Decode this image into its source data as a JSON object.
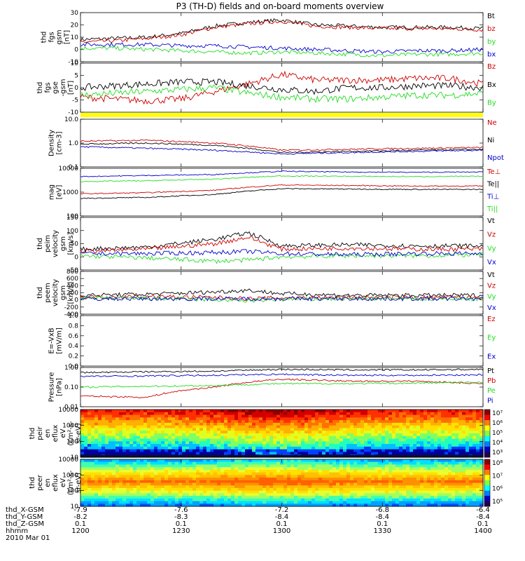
{
  "title": "P3 (TH-D) fields and on-board moments overview",
  "footer": {
    "row_labels": [
      "thd_X-GSM",
      "thd_Y-GSM",
      "thd_Z-GSM",
      "hhmm",
      "2010 Mar 01"
    ],
    "time_ticks": [
      "1200",
      "1230",
      "1300",
      "1330",
      "1400"
    ],
    "x_gsm": [
      "-7.9",
      "-7.6",
      "-7.2",
      "-6.8",
      "-6.4"
    ],
    "y_gsm": [
      "-8.2",
      "-8.3",
      "-8.4",
      "-8.4",
      "-8.4"
    ],
    "z_gsm": [
      "0.1",
      "0.1",
      "0.1",
      "0.1",
      "0.1"
    ]
  },
  "colors": {
    "black": "#000000",
    "red": "#cc0000",
    "green": "#22dd22",
    "blue": "#0000cc",
    "yellow": "#ffff00"
  },
  "chart_data": [
    {
      "type": "line",
      "ylabel_lines": [
        "thd",
        "fgs",
        "gsm",
        "[nT]"
      ],
      "yticks": [
        "30",
        "20",
        "10",
        "0",
        "-10"
      ],
      "ylim": [
        -10,
        30
      ],
      "x_range": [
        "1200",
        "1400"
      ],
      "legend": [
        "Bt",
        "bz",
        "by",
        "bx"
      ],
      "legend_colors": [
        "#000000",
        "#cc0000",
        "#22dd22",
        "#0000cc"
      ],
      "series": [
        {
          "name": "Bt",
          "x": [
            "1200",
            "1210",
            "1220",
            "1230",
            "1240",
            "1250",
            "1300",
            "1310",
            "1320",
            "1330",
            "1340",
            "1350",
            "1400"
          ],
          "values": [
            8,
            9,
            10,
            13,
            19,
            22,
            24,
            20,
            19,
            18,
            18,
            18,
            17
          ]
        },
        {
          "name": "bz",
          "x": [
            "1200",
            "1210",
            "1220",
            "1230",
            "1240",
            "1250",
            "1300",
            "1310",
            "1320",
            "1330",
            "1340",
            "1350",
            "1400"
          ],
          "values": [
            6,
            7,
            9,
            12,
            18,
            21,
            23,
            19,
            18,
            17,
            17,
            17,
            16
          ]
        },
        {
          "name": "by",
          "x": [
            "1200",
            "1210",
            "1220",
            "1230",
            "1240",
            "1250",
            "1300",
            "1310",
            "1320",
            "1330",
            "1340",
            "1350",
            "1400"
          ],
          "values": [
            1,
            1,
            0,
            -1,
            -2,
            -3,
            -2,
            -3,
            -4,
            -5,
            -4,
            -4,
            -3
          ]
        },
        {
          "name": "bx",
          "x": [
            "1200",
            "1210",
            "1220",
            "1230",
            "1240",
            "1250",
            "1300",
            "1310",
            "1320",
            "1330",
            "1340",
            "1350",
            "1400"
          ],
          "values": [
            4,
            4,
            4,
            3,
            3,
            2,
            1,
            0,
            -1,
            -2,
            -1,
            -1,
            0
          ]
        }
      ]
    },
    {
      "type": "line",
      "ylabel_lines": [
        "thd",
        "fgs",
        "gse",
        "-gsm",
        "[nT]"
      ],
      "yticks": [
        "10",
        "5",
        "0",
        "-5",
        "-10"
      ],
      "ylim": [
        -13,
        13
      ],
      "x_range": [
        "1200",
        "1400"
      ],
      "legend": [
        "Bz",
        "Bx",
        "By"
      ],
      "legend_colors": [
        "#cc0000",
        "#000000",
        "#22dd22"
      ],
      "series": [
        {
          "name": "Bz",
          "x": [
            "1200",
            "1210",
            "1220",
            "1230",
            "1240",
            "1250",
            "1300",
            "1310",
            "1320",
            "1330",
            "1340",
            "1350",
            "1400"
          ],
          "values": [
            -5,
            -6,
            -7,
            -6,
            -2,
            2,
            7,
            4,
            4,
            4,
            5,
            5,
            2
          ]
        },
        {
          "name": "Bx",
          "x": [
            "1200",
            "1210",
            "1220",
            "1230",
            "1240",
            "1250",
            "1300",
            "1310",
            "1320",
            "1330",
            "1340",
            "1350",
            "1400"
          ],
          "values": [
            0,
            1,
            2,
            3,
            3,
            1,
            -1,
            -2,
            0,
            0,
            1,
            1,
            0
          ]
        },
        {
          "name": "By",
          "x": [
            "1200",
            "1210",
            "1220",
            "1230",
            "1240",
            "1250",
            "1300",
            "1310",
            "1320",
            "1330",
            "1340",
            "1350",
            "1400"
          ],
          "values": [
            -4,
            -3,
            -2,
            -1,
            0,
            -3,
            -5,
            -6,
            -6,
            -5,
            -4,
            -4,
            -3
          ]
        }
      ]
    },
    {
      "type": "line",
      "log_scale": true,
      "ylabel_lines": [
        "Density",
        "[cm-3]"
      ],
      "yticks": [
        "10.0",
        "1.0",
        "0.1"
      ],
      "ylim": [
        0.1,
        10
      ],
      "x_range": [
        "1200",
        "1400"
      ],
      "legend": [
        "Ne",
        "Ni",
        "Npot"
      ],
      "legend_colors": [
        "#cc0000",
        "#000000",
        "#0000cc"
      ],
      "series": [
        {
          "name": "Ne",
          "x": [
            "1200",
            "1220",
            "1240",
            "1300",
            "1320",
            "1340",
            "1400"
          ],
          "values": [
            1.2,
            1.3,
            1.0,
            0.5,
            0.55,
            0.6,
            0.65
          ]
        },
        {
          "name": "Ni",
          "x": [
            "1200",
            "1220",
            "1240",
            "1300",
            "1320",
            "1340",
            "1400"
          ],
          "values": [
            0.9,
            1.0,
            0.8,
            0.4,
            0.45,
            0.5,
            0.55
          ]
        },
        {
          "name": "Npot",
          "x": [
            "1200",
            "1220",
            "1240",
            "1300",
            "1320",
            "1340",
            "1400"
          ],
          "values": [
            0.7,
            0.6,
            0.5,
            0.35,
            0.4,
            0.45,
            0.5
          ]
        }
      ]
    },
    {
      "type": "line",
      "log_scale": true,
      "ylabel_lines": [
        "mag",
        "[eV]"
      ],
      "yticks": [
        "10000",
        "1000",
        "100"
      ],
      "ylim": [
        100,
        10000
      ],
      "x_range": [
        "1200",
        "1400"
      ],
      "legend": [
        "Te⊥",
        "Te||",
        "Ti⊥",
        "Ti||"
      ],
      "legend_colors": [
        "#cc0000",
        "#000000",
        "#0000cc",
        "#22dd22"
      ],
      "series": [
        {
          "name": "Te⊥",
          "x": [
            "1200",
            "1220",
            "1240",
            "1300",
            "1320",
            "1340",
            "1400"
          ],
          "values": [
            850,
            950,
            1200,
            2000,
            1900,
            1800,
            1800
          ]
        },
        {
          "name": "Te||",
          "x": [
            "1200",
            "1220",
            "1240",
            "1300",
            "1320",
            "1340",
            "1400"
          ],
          "values": [
            550,
            600,
            800,
            1400,
            1350,
            1300,
            1300
          ]
        },
        {
          "name": "Ti⊥",
          "x": [
            "1200",
            "1220",
            "1240",
            "1300",
            "1320",
            "1340",
            "1400"
          ],
          "values": [
            4500,
            5000,
            5500,
            7500,
            7000,
            6800,
            7000
          ]
        },
        {
          "name": "Ti||",
          "x": [
            "1200",
            "1220",
            "1240",
            "1300",
            "1320",
            "1340",
            "1400"
          ],
          "values": [
            2800,
            3000,
            3500,
            4800,
            4600,
            4500,
            4600
          ]
        }
      ]
    },
    {
      "type": "line",
      "ylabel_lines": [
        "thd",
        "peim",
        "velocity",
        "gsm",
        "[km/s]"
      ],
      "yticks": [
        "150",
        "100",
        "50",
        "0",
        "-50"
      ],
      "ylim": [
        -70,
        170
      ],
      "x_range": [
        "1200",
        "1400"
      ],
      "legend": [
        "Vt",
        "Vz",
        "Vy",
        "Vx"
      ],
      "legend_colors": [
        "#000000",
        "#cc0000",
        "#22dd22",
        "#0000cc"
      ],
      "series": [
        {
          "name": "Vt",
          "x": [
            "1200",
            "1220",
            "1240",
            "1250",
            "1300",
            "1320",
            "1340",
            "1400"
          ],
          "values": [
            25,
            35,
            70,
            100,
            40,
            45,
            40,
            40
          ]
        },
        {
          "name": "Vz",
          "x": [
            "1200",
            "1220",
            "1240",
            "1250",
            "1300",
            "1320",
            "1340",
            "1400"
          ],
          "values": [
            15,
            25,
            50,
            80,
            25,
            30,
            25,
            25
          ]
        },
        {
          "name": "Vy",
          "x": [
            "1200",
            "1220",
            "1240",
            "1250",
            "1300",
            "1320",
            "1340",
            "1400"
          ],
          "values": [
            -5,
            -15,
            -30,
            -25,
            -10,
            -5,
            -5,
            0
          ]
        },
        {
          "name": "Vx",
          "x": [
            "1200",
            "1220",
            "1240",
            "1250",
            "1300",
            "1320",
            "1340",
            "1400"
          ],
          "values": [
            5,
            5,
            10,
            15,
            5,
            0,
            5,
            5
          ]
        }
      ]
    },
    {
      "type": "line",
      "ylabel_lines": [
        "thd",
        "peem",
        "velocity",
        "gsm",
        "[km/s]"
      ],
      "yticks": [
        "800",
        "600",
        "400",
        "200",
        "0",
        "-200",
        "-400"
      ],
      "ylim": [
        -450,
        800
      ],
      "x_range": [
        "1200",
        "1400"
      ],
      "legend": [
        "Vt",
        "Vz",
        "Vy",
        "Vx"
      ],
      "legend_colors": [
        "#000000",
        "#cc0000",
        "#22dd22",
        "#0000cc"
      ],
      "series": [
        {
          "name": "Vt",
          "x": [
            "1200",
            "1220",
            "1240",
            "1250",
            "1300",
            "1320",
            "1340",
            "1400"
          ],
          "values": [
            100,
            130,
            200,
            250,
            150,
            100,
            100,
            100
          ]
        },
        {
          "name": "Vz",
          "x": [
            "1200",
            "1220",
            "1240",
            "1250",
            "1300",
            "1320",
            "1340",
            "1400"
          ],
          "values": [
            50,
            60,
            40,
            0,
            30,
            40,
            40,
            40
          ]
        },
        {
          "name": "Vy",
          "x": [
            "1200",
            "1220",
            "1240",
            "1250",
            "1300",
            "1320",
            "1340",
            "1400"
          ],
          "values": [
            20,
            10,
            -30,
            -60,
            -20,
            0,
            0,
            0
          ]
        },
        {
          "name": "Vx",
          "x": [
            "1200",
            "1220",
            "1240",
            "1250",
            "1300",
            "1320",
            "1340",
            "1400"
          ],
          "values": [
            0,
            0,
            0,
            0,
            0,
            0,
            0,
            0
          ]
        }
      ]
    },
    {
      "type": "line",
      "ylabel_lines": [
        "E=-VxB",
        "[mV/m]"
      ],
      "yticks": [
        "1.0",
        "0.8",
        "0.6",
        "0.4",
        "0.2",
        "0.0"
      ],
      "ylim": [
        0,
        1
      ],
      "x_range": [
        "1200",
        "1400"
      ],
      "legend": [
        "Ez",
        "Ey",
        "Ex"
      ],
      "legend_colors": [
        "#cc0000",
        "#22dd22",
        "#0000cc"
      ],
      "series": []
    },
    {
      "type": "line",
      "log_scale": true,
      "ylabel_lines": [
        "Pressure",
        "[nPa]"
      ],
      "yticks": [
        "1.00",
        "0.10",
        "0.01"
      ],
      "ylim": [
        0.01,
        1
      ],
      "x_range": [
        "1200",
        "1400"
      ],
      "legend": [
        "Pt",
        "Pb",
        "Pe",
        "Pi"
      ],
      "legend_colors": [
        "#000000",
        "#cc0000",
        "#22dd22",
        "#0000cc"
      ],
      "series": [
        {
          "name": "Pt",
          "x": [
            "1200",
            "1220",
            "1240",
            "1300",
            "1320",
            "1340",
            "1400"
          ],
          "values": [
            0.55,
            0.6,
            0.65,
            0.8,
            0.75,
            0.75,
            0.8
          ]
        },
        {
          "name": "Pb",
          "x": [
            "1200",
            "1220",
            "1240",
            "1300",
            "1320",
            "1340",
            "1400"
          ],
          "values": [
            0.035,
            0.03,
            0.1,
            0.25,
            0.2,
            0.2,
            0.15
          ]
        },
        {
          "name": "Pe",
          "x": [
            "1200",
            "1220",
            "1240",
            "1300",
            "1320",
            "1340",
            "1400"
          ],
          "values": [
            0.1,
            0.11,
            0.12,
            0.15,
            0.15,
            0.16,
            0.18
          ]
        },
        {
          "name": "Pi",
          "x": [
            "1200",
            "1220",
            "1240",
            "1300",
            "1320",
            "1340",
            "1400"
          ],
          "values": [
            0.35,
            0.37,
            0.4,
            0.45,
            0.4,
            0.4,
            0.42
          ]
        }
      ]
    },
    {
      "type": "heatmap",
      "ylabel_lines": [
        "thd",
        "peir",
        "en",
        "eflux",
        "eV",
        "(cm²-s-",
        "sr-eV)"
      ],
      "yticks": [
        "10000",
        "1000",
        "100",
        "10"
      ],
      "colorbar_ticks": [
        "10⁷",
        "10⁶",
        "10⁵",
        "10⁴",
        "10³"
      ],
      "x_range": [
        "1200",
        "1400"
      ]
    },
    {
      "type": "heatmap",
      "ylabel_lines": [
        "thd",
        "peer",
        "en",
        "eflux",
        "eV",
        "(cm²-s-",
        "sr-eV)"
      ],
      "yticks": [
        "10000",
        "1000",
        "100",
        "10"
      ],
      "colorbar_ticks": [
        "10⁸",
        "10⁷",
        "10⁶",
        "10⁵"
      ],
      "x_range": [
        "1200",
        "1400"
      ]
    }
  ]
}
